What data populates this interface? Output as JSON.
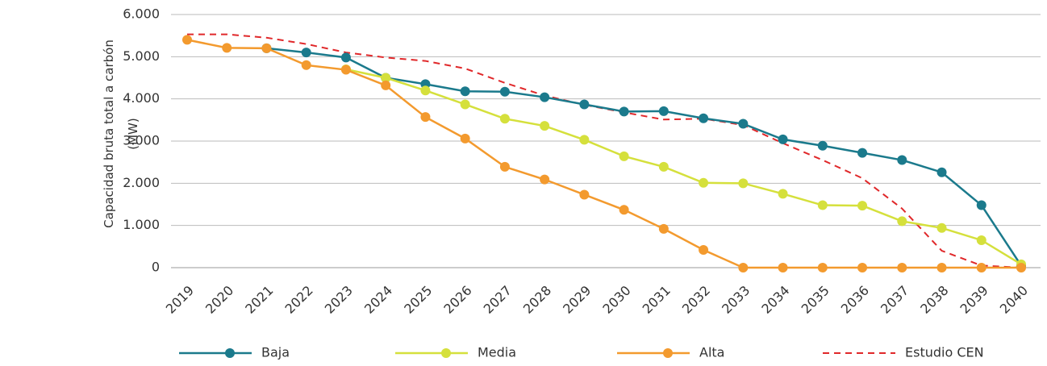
{
  "chart_data": {
    "type": "line",
    "y_label": "Capacidad bruta total a carbón (MW)",
    "categories": [
      "2019",
      "2020",
      "2021",
      "2022",
      "2023",
      "2024",
      "2025",
      "2026",
      "2027",
      "2028",
      "2029",
      "2030",
      "2031",
      "2032",
      "2033",
      "2034",
      "2035",
      "2036",
      "2037",
      "2038",
      "2039",
      "2040"
    ],
    "series": [
      {
        "name": "Baja",
        "color": "#1b7a8c",
        "markers": true,
        "dashed": false,
        "values": [
          null,
          null,
          5200,
          5100,
          4980,
          4500,
          4350,
          4180,
          4170,
          4040,
          3870,
          3700,
          3710,
          3540,
          3410,
          3040,
          2890,
          2720,
          2550,
          2260,
          1480,
          50
        ]
      },
      {
        "name": "Media",
        "color": "#d5e03c",
        "markers": true,
        "dashed": false,
        "values": [
          null,
          null,
          null,
          null,
          4700,
          4500,
          4200,
          3870,
          3530,
          3360,
          3030,
          2640,
          2390,
          2010,
          2000,
          1750,
          1480,
          1470,
          1100,
          940,
          650,
          80
        ]
      },
      {
        "name": "Alta",
        "color": "#f39a2e",
        "markers": true,
        "dashed": false,
        "values": [
          5400,
          5210,
          5200,
          4800,
          4690,
          4320,
          3570,
          3060,
          2390,
          2090,
          1730,
          1370,
          920,
          420,
          0,
          0,
          0,
          0,
          0,
          0,
          0,
          0
        ]
      },
      {
        "name": "Estudio CEN",
        "color": "#e0282a",
        "markers": false,
        "dashed": true,
        "values": [
          5530,
          5530,
          5450,
          5300,
          5100,
          4980,
          4900,
          4720,
          4380,
          4080,
          3860,
          3680,
          3510,
          3530,
          3380,
          2950,
          2550,
          2120,
          1400,
          400,
          50,
          0
        ]
      }
    ],
    "ylim": [
      0,
      6000
    ],
    "yticks": [
      0,
      {
        "value": 1000,
        "label": "1.000"
      },
      {
        "value": 2000,
        "label": "2.000"
      },
      {
        "value": 3000,
        "label": "3.000"
      },
      {
        "value": 4000,
        "label": "4.000"
      },
      {
        "value": 5000,
        "label": "5.000"
      },
      {
        "value": 6000,
        "label": "6.000"
      }
    ],
    "grid": true,
    "legend": "bottom"
  }
}
